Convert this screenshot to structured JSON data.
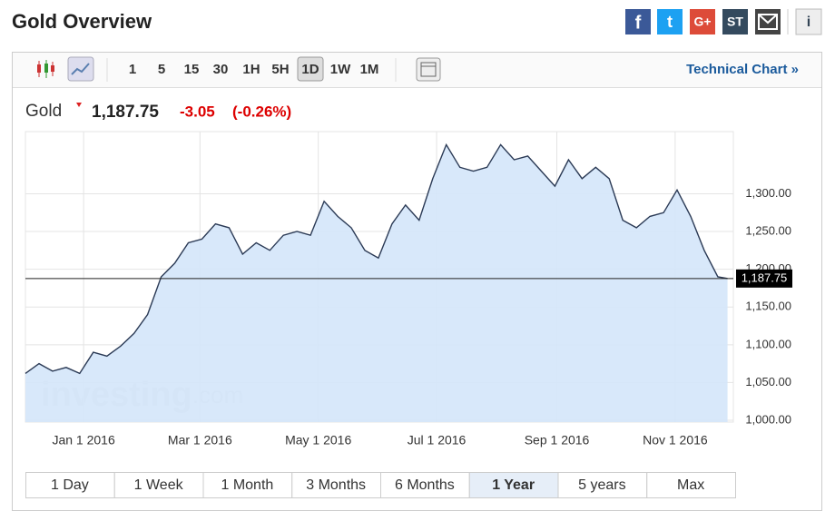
{
  "header": {
    "title": "Gold Overview",
    "share_icons": [
      "f",
      "t",
      "G+",
      "ST",
      "i"
    ]
  },
  "toolbar": {
    "intervals": [
      "1",
      "5",
      "15",
      "30",
      "1H",
      "5H",
      "1D",
      "1W",
      "1M"
    ],
    "selected_interval": "1D",
    "link": "Technical Chart »"
  },
  "quote": {
    "name": "Gold",
    "price": "1,187.75",
    "change": "-3.05",
    "change_percent": "(-0.26%)"
  },
  "watermark": {
    "brand": "investing",
    "suffix": ".com"
  },
  "range_tabs": {
    "tabs": [
      "1 Day",
      "1 Week",
      "1 Month",
      "3 Months",
      "6 Months",
      "1 Year",
      "5 years",
      "Max"
    ],
    "selected": "1 Year"
  },
  "chart_data": {
    "type": "area",
    "color": "#2b3a55",
    "fill": "#d4e6fa",
    "grid": true,
    "x": [
      "2015-12-02",
      "2015-12-09",
      "2015-12-16",
      "2015-12-23",
      "2015-12-30",
      "2016-01-06",
      "2016-01-13",
      "2016-01-20",
      "2016-01-27",
      "2016-02-03",
      "2016-02-10",
      "2016-02-17",
      "2016-02-24",
      "2016-03-02",
      "2016-03-09",
      "2016-03-16",
      "2016-03-23",
      "2016-03-30",
      "2016-04-06",
      "2016-04-13",
      "2016-04-20",
      "2016-04-27",
      "2016-05-04",
      "2016-05-11",
      "2016-05-18",
      "2016-05-25",
      "2016-06-01",
      "2016-06-08",
      "2016-06-15",
      "2016-06-22",
      "2016-06-29",
      "2016-07-06",
      "2016-07-13",
      "2016-07-20",
      "2016-07-27",
      "2016-08-03",
      "2016-08-10",
      "2016-08-17",
      "2016-08-24",
      "2016-08-31",
      "2016-09-07",
      "2016-09-14",
      "2016-09-21",
      "2016-09-28",
      "2016-10-05",
      "2016-10-12",
      "2016-10-19",
      "2016-10-26",
      "2016-11-02",
      "2016-11-09",
      "2016-11-16",
      "2016-11-23",
      "2016-11-28"
    ],
    "values": [
      1062,
      1075,
      1065,
      1070,
      1062,
      1090,
      1085,
      1098,
      1115,
      1140,
      1190,
      1208,
      1235,
      1240,
      1260,
      1255,
      1220,
      1235,
      1225,
      1245,
      1250,
      1245,
      1290,
      1270,
      1255,
      1225,
      1215,
      1260,
      1285,
      1265,
      1320,
      1365,
      1335,
      1330,
      1335,
      1365,
      1345,
      1350,
      1330,
      1310,
      1345,
      1320,
      1335,
      1320,
      1265,
      1255,
      1270,
      1275,
      1305,
      1270,
      1225,
      1190,
      1187.75
    ],
    "xlim": [
      "2015-12-02",
      "2016-12-01"
    ],
    "xticks": [
      {
        "value": "2016-01-01",
        "label": "Jan 1 2016"
      },
      {
        "value": "2016-03-01",
        "label": "Mar 1 2016"
      },
      {
        "value": "2016-05-01",
        "label": "May 1 2016"
      },
      {
        "value": "2016-07-01",
        "label": "Jul 1 2016"
      },
      {
        "value": "2016-09-01",
        "label": "Sep 1 2016"
      },
      {
        "value": "2016-11-01",
        "label": "Nov 1 2016"
      }
    ],
    "ylim": [
      997.6,
      1382.3
    ],
    "yticks": [
      {
        "value": 1000,
        "label": "1,000.00"
      },
      {
        "value": 1050,
        "label": "1,050.00"
      },
      {
        "value": 1100,
        "label": "1,100.00"
      },
      {
        "value": 1150,
        "label": "1,150.00"
      },
      {
        "value": 1200,
        "label": "1,200.00"
      },
      {
        "value": 1250,
        "label": "1,250.00"
      },
      {
        "value": 1300,
        "label": "1,300.00"
      }
    ],
    "current": {
      "value": 1187.75,
      "label": "1,187.75"
    }
  }
}
